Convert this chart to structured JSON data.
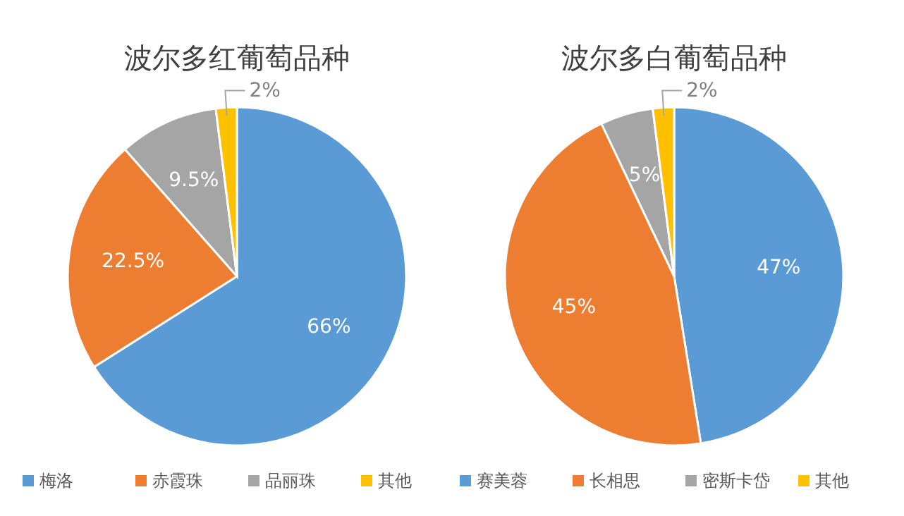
{
  "chart_data": [
    {
      "type": "pie",
      "title": "波尔多红葡萄品种",
      "categories": [
        "梅洛",
        "赤霞珠",
        "品丽珠",
        "其他"
      ],
      "values": [
        66,
        22.5,
        9.5,
        2
      ],
      "colors": [
        "#5b9bd5",
        "#ed7d31",
        "#a5a5a5",
        "#ffc000"
      ],
      "value_labels": [
        "66%",
        "22.5%",
        "9.5%",
        "2%"
      ],
      "legend": "bottom"
    },
    {
      "type": "pie",
      "title": "波尔多白葡萄品种",
      "categories": [
        "赛美蓉",
        "长相思",
        "密斯卡岱",
        "其他"
      ],
      "values": [
        47,
        45,
        5,
        2
      ],
      "colors": [
        "#5b9bd5",
        "#ed7d31",
        "#a5a5a5",
        "#ffc000"
      ],
      "value_labels": [
        "47%",
        "45%",
        "5%",
        "2%"
      ],
      "legend": "bottom"
    }
  ]
}
